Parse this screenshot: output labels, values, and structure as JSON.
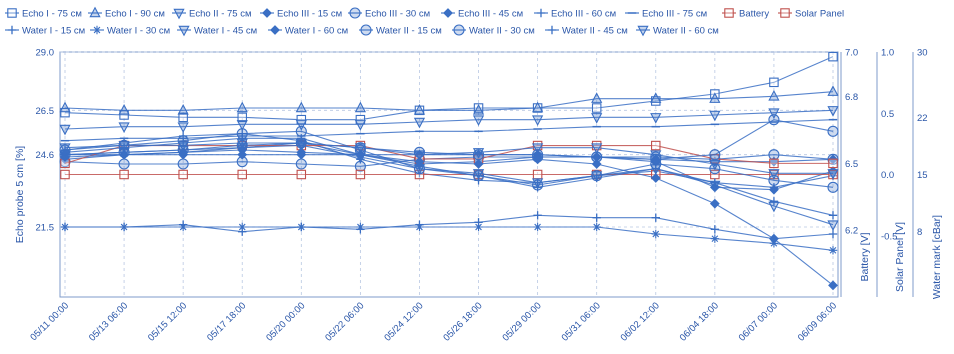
{
  "chart_data": {
    "type": "line",
    "x": [
      "05/11 00:00",
      "05/13 06:00",
      "05/15 12:00",
      "05/17 18:00",
      "05/20 00:00",
      "05/22 06:00",
      "05/24 12:00",
      "05/26 18:00",
      "05/29 00:00",
      "05/31 06:00",
      "06/02 12:00",
      "06/04 18:00",
      "06/07 00:00",
      "06/09 06:00"
    ],
    "xlabel": "",
    "y_left": {
      "label": "Echo probe 5 cm [%]",
      "ticks": [
        "21.5",
        "24.6",
        "26.5",
        "29.0"
      ],
      "ylim": [
        18.5,
        29.0
      ]
    },
    "y_right": [
      {
        "label": "Battery [V]",
        "ticks": [
          "6.2",
          "6.5",
          "6.8",
          "7.0"
        ],
        "ylim": [
          5.9,
          7.0
        ]
      },
      {
        "label": "Solar Panel [V]",
        "ticks": [
          "-0.5",
          "0.0",
          "0.5",
          "1.0"
        ],
        "ylim": [
          -1.0,
          1.0
        ]
      },
      {
        "label": "Water mark [cBar]",
        "ticks": [
          "8",
          "15",
          "22",
          "30"
        ],
        "ylim": [
          0,
          30
        ]
      }
    ],
    "grid": {
      "vertical": "dashed",
      "horizontal": "dashed"
    },
    "legend_position": "top",
    "series": [
      {
        "name": "Echo I - 75 cм",
        "marker": "square",
        "color": "#3a6fc4",
        "values": [
          26.4,
          26.3,
          26.2,
          26.2,
          26.1,
          26.1,
          26.5,
          26.6,
          26.6,
          26.6,
          26.9,
          27.2,
          27.7,
          28.8
        ]
      },
      {
        "name": "Echo I - 90 cм",
        "marker": "triangle",
        "color": "#3a6fc4",
        "values": [
          26.6,
          26.5,
          26.5,
          26.6,
          26.6,
          26.6,
          26.5,
          26.5,
          26.6,
          27.0,
          27.0,
          27.0,
          27.1,
          27.3
        ]
      },
      {
        "name": "Echo II - 75 cм",
        "marker": "tri-down",
        "color": "#3a6fc4",
        "values": [
          25.7,
          25.8,
          25.8,
          25.9,
          25.9,
          25.9,
          26.0,
          26.1,
          26.1,
          26.2,
          26.2,
          26.3,
          26.4,
          26.5
        ]
      },
      {
        "name": "Echo III - 15 cм",
        "marker": "diamond",
        "color": "#3a6fc4",
        "values": [
          24.6,
          24.6,
          24.6,
          24.6,
          24.6,
          24.6,
          24.6,
          24.6,
          24.6,
          24.5,
          24.4,
          24.3,
          24.3,
          24.4
        ]
      },
      {
        "name": "Echo III - 30 cм",
        "marker": "circle",
        "color": "#3a6fc4",
        "values": [
          24.3,
          24.2,
          24.2,
          24.3,
          24.2,
          24.1,
          24.4,
          24.5,
          24.5,
          24.5,
          24.5,
          24.4,
          24.6,
          24.4
        ]
      },
      {
        "name": "Echo III - 45 cм",
        "marker": "diamond",
        "color": "#3a6fc4",
        "values": [
          24.4,
          24.6,
          24.7,
          24.9,
          25.1,
          24.6,
          24.2,
          24.3,
          24.5,
          24.5,
          24.3,
          23.2,
          23.1,
          23.9
        ]
      },
      {
        "name": "Echo III - 60 cм",
        "marker": "cross",
        "color": "#3a6fc4",
        "values": [
          24.8,
          25.1,
          25.4,
          25.5,
          25.2,
          24.4,
          23.8,
          23.5,
          23.4,
          23.7,
          23.9,
          23.4,
          23.2,
          23.7
        ]
      },
      {
        "name": "Echo III - 75 cм",
        "marker": "dash",
        "color": "#3a6fc4",
        "values": [
          25.2,
          25.3,
          25.3,
          25.4,
          25.4,
          25.5,
          25.6,
          25.6,
          25.7,
          25.8,
          25.8,
          25.9,
          26.0,
          26.1
        ]
      },
      {
        "name": "Battery",
        "marker": "square",
        "color": "#c0504d",
        "axis": "battery",
        "values": [
          6.5,
          6.58,
          6.58,
          6.58,
          6.58,
          6.58,
          6.52,
          6.52,
          6.58,
          6.58,
          6.58,
          6.52,
          6.5,
          6.5
        ]
      },
      {
        "name": "Solar Panel",
        "marker": "square",
        "color": "#c0504d",
        "axis": "solar",
        "values": [
          0.0,
          0.0,
          0.0,
          0.0,
          0.0,
          0.0,
          0.0,
          0.0,
          0.0,
          0.0,
          0.0,
          0.0,
          0.0,
          0.0
        ]
      },
      {
        "name": "Water I - 15 cм",
        "marker": "cross",
        "color": "#3a6fc4",
        "values": [
          21.5,
          21.5,
          21.6,
          21.3,
          21.5,
          21.4,
          21.6,
          21.7,
          22.0,
          21.9,
          21.9,
          21.4,
          21.0,
          21.2
        ]
      },
      {
        "name": "Water I - 30 cм",
        "marker": "star",
        "color": "#3a6fc4",
        "values": [
          21.5,
          21.5,
          21.5,
          21.5,
          21.5,
          21.5,
          21.5,
          21.5,
          21.5,
          21.5,
          21.2,
          21.0,
          20.8,
          20.5
        ]
      },
      {
        "name": "Water I - 45 cм",
        "marker": "tri-down",
        "color": "#3a6fc4",
        "values": [
          24.9,
          25.0,
          25.0,
          25.1,
          25.1,
          24.9,
          24.6,
          24.7,
          24.9,
          24.9,
          24.6,
          24.2,
          23.8,
          23.8
        ]
      },
      {
        "name": "Water I - 60 cм",
        "marker": "diamond",
        "color": "#3a6fc4",
        "values": [
          24.5,
          24.6,
          24.7,
          24.8,
          24.7,
          24.6,
          24.3,
          24.2,
          24.4,
          24.2,
          23.6,
          22.5,
          21.0,
          19.0
        ]
      },
      {
        "name": "Water II - 15 cм",
        "marker": "circle",
        "color": "#3a6fc4",
        "values": [
          24.6,
          24.7,
          24.8,
          25.0,
          25.1,
          24.9,
          24.7,
          24.6,
          24.6,
          24.5,
          24.4,
          24.6,
          26.1,
          25.6
        ]
      },
      {
        "name": "Water II - 30 cм",
        "marker": "circle",
        "color": "#3a6fc4",
        "values": [
          24.8,
          25.0,
          25.2,
          25.5,
          25.6,
          24.8,
          24.0,
          23.7,
          23.3,
          23.7,
          24.2,
          24.0,
          23.5,
          23.2
        ]
      },
      {
        "name": "Water II - 45 cм",
        "marker": "cross",
        "color": "#3a6fc4",
        "values": [
          24.7,
          24.9,
          25.1,
          25.3,
          25.3,
          24.6,
          24.1,
          23.7,
          23.2,
          23.6,
          24.0,
          23.4,
          22.6,
          22.0
        ]
      },
      {
        "name": "Water II - 60 cм",
        "marker": "tri-down",
        "color": "#3a6fc4",
        "values": [
          24.6,
          24.7,
          24.8,
          24.9,
          25.0,
          24.5,
          24.0,
          23.8,
          23.4,
          23.7,
          24.0,
          23.3,
          22.4,
          21.6
        ]
      }
    ]
  }
}
